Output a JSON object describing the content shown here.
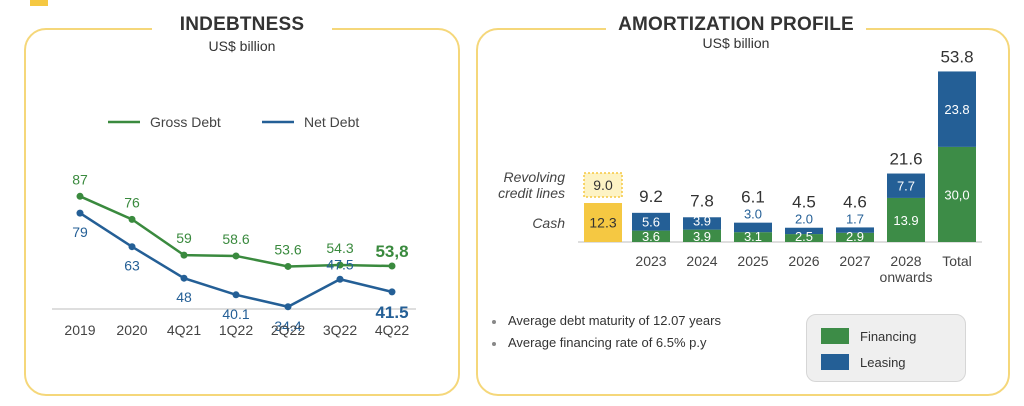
{
  "left_panel": {
    "title": "INDEBTNESS",
    "subtitle": "US$ billion"
  },
  "right_panel": {
    "title": "AMORTIZATION PROFILE",
    "subtitle": "US$ billion",
    "revolving_label_line1": "Revolving",
    "revolving_label_line2": "credit lines",
    "cash_label": "Cash",
    "bullets": [
      "Average debt maturity of 12.07 years",
      "Average financing rate of 6.5% p.y"
    ],
    "legend": [
      {
        "label": "Financing",
        "color": "#3d8c47"
      },
      {
        "label": "Leasing",
        "color": "#245f96"
      }
    ]
  },
  "colors": {
    "gross": "#3a8a3e",
    "net": "#245f96",
    "financing": "#3d8c47",
    "leasing": "#245f96",
    "cash_yellow": "#f5c842",
    "accent": "#f5c842"
  },
  "chart_data": [
    {
      "type": "line",
      "x": [
        "2019",
        "2020",
        "4Q21",
        "1Q22",
        "2Q22",
        "3Q22",
        "4Q22"
      ],
      "series": [
        {
          "name": "Gross Debt",
          "values": [
            87,
            76,
            59,
            58.6,
            53.6,
            54.3,
            53.8
          ],
          "labels": [
            "87",
            "76",
            "59",
            "58.6",
            "53.6",
            "54.3",
            "53,8"
          ]
        },
        {
          "name": "Net Debt",
          "values": [
            79,
            63,
            48,
            40.1,
            34.4,
            47.5,
            41.5
          ],
          "labels": [
            "79",
            "63",
            "48",
            "40.1",
            "34.4",
            "47.5",
            "41.5"
          ]
        }
      ]
    },
    {
      "type": "bar",
      "stacked": true,
      "categories": [
        "",
        "2023",
        "2024",
        "2025",
        "2026",
        "2027",
        "2028 onwards",
        "Total"
      ],
      "category_lines": [
        [
          ""
        ],
        [
          "2023"
        ],
        [
          "2024"
        ],
        [
          "2025"
        ],
        [
          "2026"
        ],
        [
          "2027"
        ],
        [
          "2028",
          "onwards"
        ],
        [
          "Total"
        ]
      ],
      "series": [
        {
          "name": "Financing",
          "values": [
            null,
            3.6,
            3.9,
            3.1,
            2.5,
            2.9,
            13.9,
            30.0
          ],
          "labels": [
            "",
            "3.6",
            "3.9",
            "3.1",
            "2.5",
            "2.9",
            "13.9",
            "30,0"
          ]
        },
        {
          "name": "Leasing",
          "values": [
            null,
            5.6,
            3.9,
            3.0,
            2.0,
            1.7,
            7.7,
            23.8
          ],
          "labels": [
            "",
            "5.6",
            "3.9",
            "3.0",
            "2.0",
            "1.7",
            "7.7",
            "23.8"
          ]
        }
      ],
      "totals": [
        "",
        "9.2",
        "7.8",
        "6.1",
        "4.5",
        "4.6",
        "21.6",
        "53.8"
      ],
      "liquidity": {
        "cash": 12.3,
        "cash_label": "12.3",
        "revolving": 9.0,
        "revolving_label": "9.0"
      }
    }
  ]
}
